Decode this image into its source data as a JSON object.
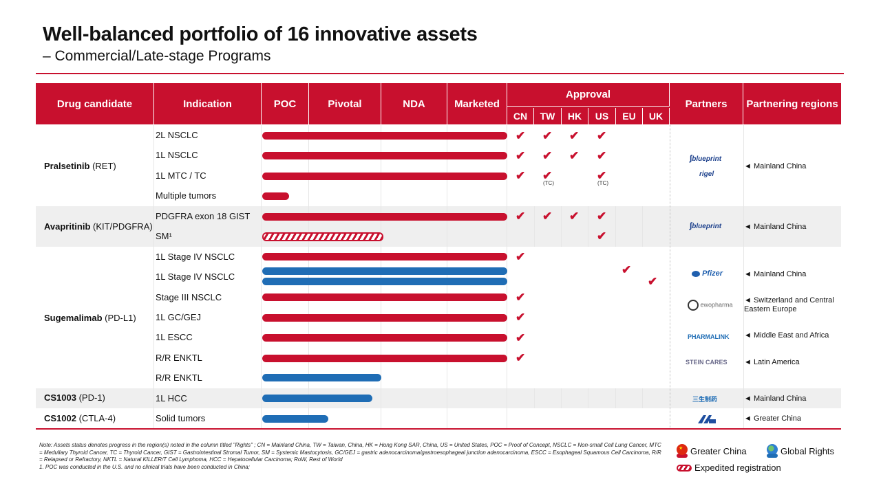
{
  "title": "Well-balanced portfolio of 16 innovative assets",
  "subtitle": "– Commercial/Late-stage Programs",
  "header": {
    "drug": "Drug candidate",
    "indication": "Indication",
    "poc": "POC",
    "pivotal": "Pivotal",
    "nda": "NDA",
    "marketed": "Marketed",
    "approval": "Approval",
    "approval_cols": [
      "CN",
      "TW",
      "HK",
      "US",
      "EU",
      "UK"
    ],
    "partners": "Partners",
    "regions": "Partnering regions"
  },
  "drugs": [
    {
      "name": "Pralsetinib",
      "target": " (RET)"
    },
    {
      "name": "Avapritinib",
      "target": " (KIT/PDGFRA)"
    },
    {
      "name": "Sugemalimab",
      "target": " (PD-L1)"
    },
    {
      "name": "CS1003",
      "target": " (PD-1)"
    },
    {
      "name": "CS1002",
      "target": " (CTLA-4)"
    }
  ],
  "indications": [
    "2L NSCLC",
    "1L NSCLC",
    "1L MTC / TC",
    "Multiple tumors",
    "PDGFRA exon 18 GIST",
    "SM¹",
    "1L Stage IV NSCLC",
    "1L Stage IV NSCLC",
    "Stage III NSCLC",
    "1L GC/GEJ",
    "1L ESCC",
    "R/R ENKTL",
    "R/R ENKTL",
    "1L HCC",
    "Solid tumors"
  ],
  "check_glyph": "✔",
  "tc_label": "(TC)",
  "partners": {
    "blueprint": "blueprint",
    "rigel": "rigel",
    "pfizer": "Pfizer",
    "ewopharma": "ewopharma",
    "pharmalink": "PHARMALINK",
    "steincares": "STEIN CARES",
    "cs1003_partner": "三生制药"
  },
  "regions": {
    "r1": "◄ Mainland China",
    "r2": "◄ Mainland China",
    "r3": "◄ Mainland China",
    "r4": "◄ Switzerland and Central Eastern Europe",
    "r5": "◄ Middle East and Africa",
    "r6": "◄ Latin America",
    "r7": "◄ Mainland China",
    "r8": "◄ Greater China"
  },
  "note": "Note: Assets status denotes progress in the region(s) noted in the column titled \"Rights\" ; CN = Mainland China, TW = Taiwan, China, HK = Hong Kong SAR, China, US = United States, POC = Proof of Concept, NSCLC = Non-small Cell Lung Cancer, MTC = Medullary Thyroid Cancer, TC = Thyroid Cancer, GIST = Gastrointestinal Stromal Tumor, SM = Systemic Mastocytosis, GC/GEJ = gastric adenocarcinoma/gastroesophageal junction adenocarcinoma, ESCC = Esophageal Squamous Cell Carcinoma, R/R = Relapsed or Refractory, NKTL = Natural KILLER/T Cell Lymphoma, HCC = Hepatocellular Carcinoma; RoW, Rest of World",
  "footnote": "1. POC was conducted in the U.S. and no clinical trials have been conducted in China;",
  "legend": {
    "greater_china": "Greater China",
    "global_rights": "Global Rights",
    "expedited": "Expedited registration"
  },
  "colors": {
    "red": "#c8102e",
    "blue": "#1f6db5"
  }
}
